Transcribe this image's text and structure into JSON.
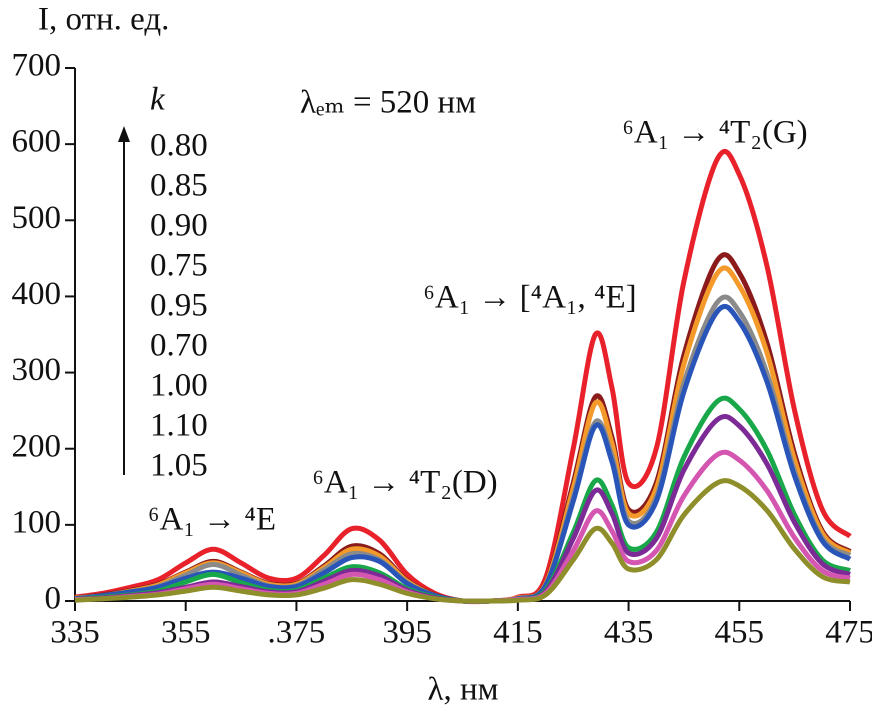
{
  "chart_data": {
    "type": "line",
    "y_label": "I, отн. ед.",
    "x_label": "λ, нм",
    "legend_title": "k",
    "annotations": [
      "λₑₘ = 520 нм",
      "⁶A₁ → ⁴T₂(G)",
      "⁶A₁ → [⁴A₁, ⁴E]",
      "⁶A₁ → ⁴T₂(D)",
      "⁶A₁ → ⁴E"
    ],
    "xlim": [
      335,
      475
    ],
    "ylim": [
      0,
      700
    ],
    "xticks": [
      335,
      355,
      {
        "value": 375,
        "label": ".375"
      },
      395,
      415,
      435,
      455,
      475
    ],
    "yticks": [
      0,
      100,
      200,
      300,
      400,
      500,
      600,
      700
    ],
    "x": [
      335,
      340,
      345,
      350,
      355,
      360,
      365,
      370,
      375,
      380,
      385,
      390,
      395,
      400,
      405,
      410,
      415,
      420,
      425,
      429,
      432,
      435,
      440,
      445,
      451,
      455,
      460,
      465,
      470,
      475
    ],
    "series": [
      {
        "name": "0.80",
        "color": "#e8212b",
        "values": [
          5,
          10,
          18,
          28,
          50,
          68,
          50,
          30,
          30,
          60,
          95,
          80,
          35,
          10,
          0,
          0,
          5,
          30,
          200,
          350,
          280,
          155,
          200,
          420,
          580,
          560,
          440,
          250,
          120,
          85
        ]
      },
      {
        "name": "0.85",
        "color": "#8b1a1a",
        "values": [
          4,
          8,
          14,
          22,
          38,
          52,
          38,
          23,
          23,
          46,
          72,
          62,
          27,
          8,
          0,
          0,
          4,
          23,
          155,
          268,
          215,
          120,
          155,
          323,
          447,
          431,
          339,
          193,
          92,
          65
        ]
      },
      {
        "name": "0.90",
        "color": "#f39a2a",
        "values": [
          4,
          7,
          13,
          21,
          37,
          50,
          37,
          22,
          22,
          44,
          68,
          59,
          26,
          7,
          0,
          0,
          4,
          22,
          148,
          260,
          207,
          115,
          148,
          311,
          430,
          414,
          326,
          185,
          89,
          63
        ]
      },
      {
        "name": "0.75",
        "color": "#8a8a8a",
        "values": [
          3,
          7,
          12,
          19,
          34,
          48,
          34,
          20,
          20,
          41,
          62,
          54,
          24,
          7,
          0,
          0,
          3,
          20,
          136,
          235,
          190,
          105,
          136,
          286,
          392,
          380,
          299,
          170,
          82,
          60
        ]
      },
      {
        "name": "0.95",
        "color": "#2a55b8",
        "values": [
          3,
          7,
          12,
          18,
          30,
          38,
          30,
          19,
          19,
          37,
          57,
          52,
          23,
          7,
          0,
          0,
          3,
          20,
          131,
          230,
          183,
          100,
          131,
          275,
          380,
          367,
          288,
          164,
          79,
          55
        ]
      },
      {
        "name": "0.70",
        "color": "#18a84a",
        "values": [
          2,
          5,
          8,
          13,
          25,
          35,
          24,
          14,
          14,
          30,
          45,
          37,
          16,
          5,
          0,
          0,
          2,
          14,
          90,
          158,
          126,
          70,
          90,
          189,
          262,
          252,
          198,
          113,
          54,
          40
        ]
      },
      {
        "name": "1.00",
        "color": "#7b2a96",
        "values": [
          2,
          4,
          7,
          11,
          18,
          25,
          19,
          12,
          12,
          26,
          40,
          33,
          14,
          4,
          0,
          0,
          2,
          12,
          82,
          145,
          115,
          63,
          82,
          172,
          238,
          230,
          180,
          103,
          49,
          35
        ]
      },
      {
        "name": "1.10",
        "color": "#d556b0",
        "values": [
          2,
          3,
          6,
          9,
          16,
          22,
          16,
          10,
          10,
          22,
          35,
          28,
          12,
          3,
          0,
          0,
          2,
          10,
          66,
          118,
          92,
          52,
          66,
          138,
          192,
          185,
          145,
          83,
          40,
          30
        ]
      },
      {
        "name": "1.05",
        "color": "#8e8e2a",
        "values": [
          1,
          3,
          5,
          8,
          13,
          18,
          13,
          8,
          8,
          17,
          28,
          22,
          10,
          3,
          0,
          0,
          1,
          8,
          54,
          95,
          76,
          42,
          54,
          113,
          155,
          151,
          119,
          68,
          32,
          25
        ]
      }
    ]
  }
}
